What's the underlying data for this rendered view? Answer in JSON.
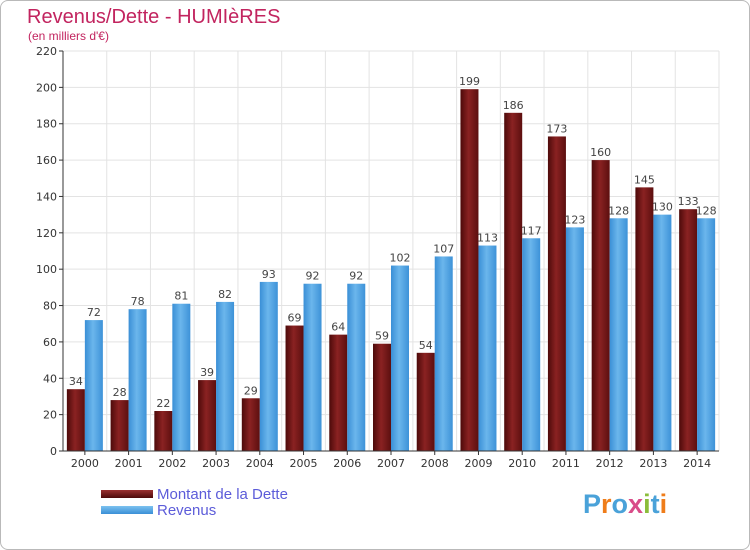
{
  "header": {
    "title": "Revenus/Dette - HUMIèRES",
    "subtitle": "(en milliers d'€)"
  },
  "logo": {
    "text": "Proxiti",
    "letter_colors": [
      "#4aa2d9",
      "#ef7d1a",
      "#4aa2d9",
      "#d94c89",
      "#8bbd3a",
      "#4aa2d9",
      "#ef7d1a"
    ]
  },
  "colors": {
    "dette": "#7a1a1a",
    "revenus": "#4ca1e1",
    "axis": "#333333",
    "grid": "#e3e3e3"
  },
  "chart_data": {
    "type": "bar",
    "title": "Revenus/Dette - HUMIèRES",
    "subtitle": "(en milliers d'€)",
    "categories": [
      "2000",
      "2001",
      "2002",
      "2003",
      "2004",
      "2005",
      "2006",
      "2007",
      "2008",
      "2009",
      "2010",
      "2011",
      "2012",
      "2013",
      "2014"
    ],
    "series": [
      {
        "name": "Montant de la Dette",
        "values": [
          34,
          28,
          22,
          39,
          29,
          69,
          64,
          59,
          54,
          199,
          186,
          173,
          160,
          145,
          133
        ]
      },
      {
        "name": "Revenus",
        "values": [
          72,
          78,
          81,
          82,
          93,
          92,
          92,
          102,
          107,
          113,
          117,
          123,
          128,
          130,
          128
        ]
      }
    ],
    "ylim": [
      0,
      220
    ],
    "yticks": [
      "0",
      "20",
      "40",
      "60",
      "80",
      "100",
      "120",
      "140",
      "160",
      "180",
      "200",
      "220"
    ],
    "grid": true,
    "legend": "bottom-left"
  }
}
